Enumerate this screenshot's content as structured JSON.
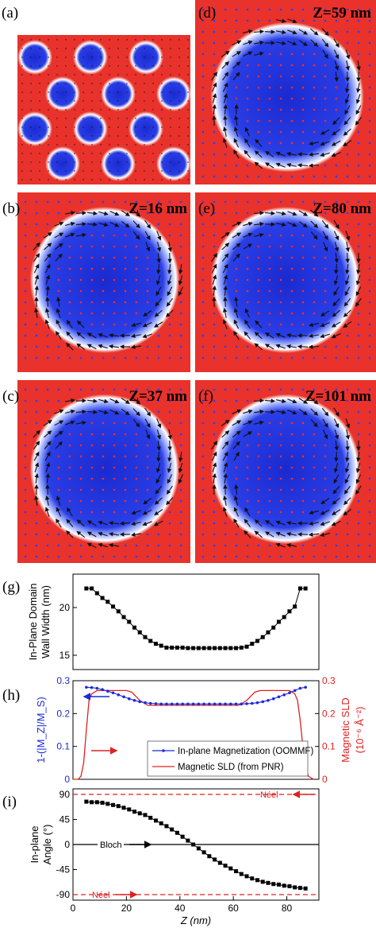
{
  "panels": [
    {
      "id": "a",
      "label": "(a)",
      "z": ""
    },
    {
      "id": "d",
      "label": "(d)",
      "z": "Z=59  nm"
    },
    {
      "id": "b",
      "label": "(b)",
      "z": "Z=16 nm"
    },
    {
      "id": "e",
      "label": "(e)",
      "z": "Z=80 nm"
    },
    {
      "id": "c",
      "label": "(c)",
      "z": "Z=37 nm"
    },
    {
      "id": "f",
      "label": "(f)",
      "z": "Z=101 nm"
    }
  ],
  "colors": {
    "red": "#e8322b",
    "blue": "#1c2bd6",
    "white": "#ffffff",
    "arrow_dark": "#111111",
    "arrow_blue": "#1f3fff",
    "arrow_red": "#ff2020"
  },
  "chart_data": [
    {
      "type": "line",
      "label": "(g)",
      "ylabel_lines": [
        "In-Plane Domain",
        "Wall Width (nm)"
      ],
      "xlim": [
        0,
        92
      ],
      "ylim": [
        13.5,
        23.5
      ],
      "yticks": [
        15,
        20
      ],
      "x": [
        5,
        7,
        9,
        11,
        13,
        15,
        17,
        19,
        21,
        23,
        25,
        27,
        29,
        31,
        33,
        35,
        37,
        39,
        41,
        43,
        45,
        47,
        49,
        51,
        53,
        55,
        57,
        59,
        61,
        63,
        65,
        67,
        69,
        71,
        73,
        75,
        77,
        79,
        81,
        83,
        85,
        87
      ],
      "y": [
        22.0,
        22.0,
        21.5,
        21.0,
        20.6,
        20.1,
        19.6,
        19.0,
        18.5,
        17.9,
        17.4,
        16.9,
        16.5,
        16.2,
        16.0,
        15.8,
        15.8,
        15.8,
        15.8,
        15.75,
        15.75,
        15.75,
        15.75,
        15.75,
        15.75,
        15.75,
        15.75,
        15.75,
        15.75,
        15.8,
        15.9,
        16.2,
        16.5,
        16.9,
        17.4,
        17.9,
        18.5,
        19.0,
        19.6,
        20.1,
        22.0,
        22.0
      ],
      "grid": false
    },
    {
      "type": "line",
      "label": "(h)",
      "ylabel_left": "1-(|M_Z|/M_S)",
      "ylabel_right_lines": [
        "Magnetic SLD",
        "(10⁻⁶ Å⁻²)"
      ],
      "xlim": [
        0,
        92
      ],
      "ylim": [
        0,
        0.3
      ],
      "yticks": [
        0,
        0.1,
        0.2,
        0.3
      ],
      "series": [
        {
          "name": "In-plane Magnetization (OOMMF)",
          "axis": "left",
          "color": "#1c2bd6",
          "x": [
            5,
            7,
            9,
            11,
            13,
            15,
            17,
            19,
            21,
            23,
            25,
            27,
            29,
            31,
            33,
            35,
            37,
            39,
            41,
            43,
            45,
            47,
            49,
            51,
            53,
            55,
            57,
            59,
            61,
            63,
            65,
            67,
            69,
            71,
            73,
            75,
            77,
            79,
            81,
            83,
            85,
            87
          ],
          "y": [
            0.28,
            0.279,
            0.277,
            0.273,
            0.268,
            0.263,
            0.257,
            0.251,
            0.245,
            0.24,
            0.236,
            0.233,
            0.231,
            0.23,
            0.229,
            0.229,
            0.229,
            0.229,
            0.229,
            0.229,
            0.229,
            0.229,
            0.229,
            0.229,
            0.229,
            0.229,
            0.229,
            0.229,
            0.229,
            0.229,
            0.23,
            0.231,
            0.233,
            0.236,
            0.24,
            0.245,
            0.251,
            0.257,
            0.263,
            0.27,
            0.277,
            0.28
          ]
        },
        {
          "name": "Magnetic SLD (from PNR)",
          "axis": "right",
          "color": "#e02020",
          "x": [
            0,
            2,
            3,
            4,
            5,
            6,
            7,
            8,
            9,
            10,
            11,
            20,
            22,
            25,
            28,
            45,
            62,
            65,
            68,
            70,
            75,
            80,
            81,
            82,
            83,
            84,
            85,
            86,
            87,
            88,
            90
          ],
          "y": [
            0,
            0.0,
            0.01,
            0.05,
            0.15,
            0.24,
            0.26,
            0.265,
            0.27,
            0.27,
            0.27,
            0.27,
            0.265,
            0.24,
            0.225,
            0.225,
            0.225,
            0.24,
            0.265,
            0.27,
            0.27,
            0.27,
            0.27,
            0.265,
            0.26,
            0.24,
            0.18,
            0.1,
            0.04,
            0.01,
            0
          ]
        }
      ]
    },
    {
      "type": "line",
      "label": "(i)",
      "ylabel_lines": [
        "In-plane",
        "Angle (°)"
      ],
      "xlabel": "Z (nm)",
      "xlim": [
        0,
        92
      ],
      "ylim": [
        -100,
        100
      ],
      "xticks": [
        0,
        20,
        40,
        60,
        80
      ],
      "yticks": [
        -90,
        -45,
        0,
        45,
        90
      ],
      "x": [
        5,
        7,
        9,
        11,
        13,
        15,
        17,
        19,
        21,
        23,
        25,
        27,
        29,
        31,
        33,
        35,
        37,
        39,
        41,
        43,
        45,
        47,
        49,
        51,
        53,
        55,
        57,
        59,
        61,
        63,
        65,
        67,
        69,
        71,
        73,
        75,
        77,
        79,
        81,
        83,
        85,
        87
      ],
      "y": [
        77,
        76,
        76,
        75,
        73,
        71,
        69,
        66,
        63,
        59,
        56,
        53,
        48,
        43,
        38,
        33,
        27,
        21,
        14,
        7,
        0,
        -7,
        -14,
        -21,
        -27,
        -33,
        -38,
        -43,
        -48,
        -53,
        -57,
        -61,
        -64,
        -67,
        -69,
        -71,
        -72,
        -74,
        -75,
        -77,
        -78,
        -79
      ],
      "annotations": [
        {
          "text": "Néel",
          "value": 90,
          "color": "#e02020"
        },
        {
          "text": "Bloch",
          "value": 0,
          "color": "#000000"
        },
        {
          "text": "Néel",
          "value": -90,
          "color": "#e02020"
        }
      ]
    }
  ]
}
